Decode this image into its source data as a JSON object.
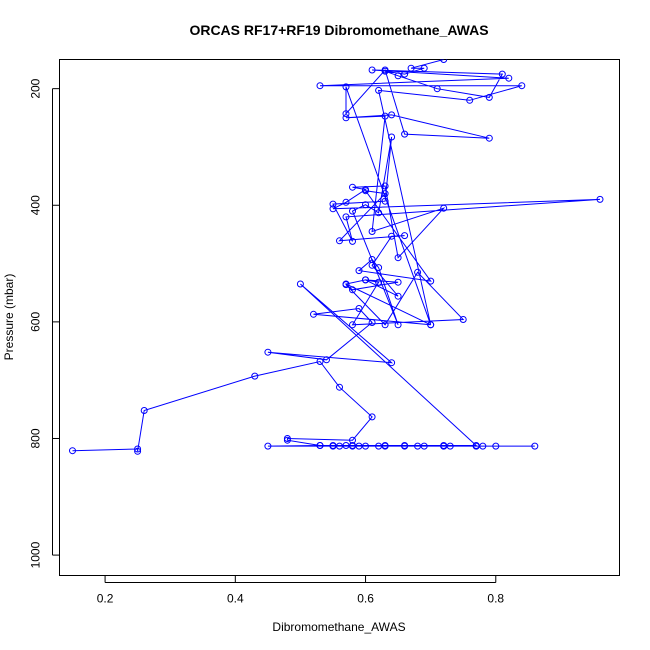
{
  "chart_data": {
    "type": "line",
    "title": "ORCAS RF17+RF19 Dibromomethane_AWAS",
    "xlabel": "Dibromomethane_AWAS",
    "ylabel": "Pressure (mbar)",
    "xlim": [
      0.13,
      0.99
    ],
    "ylim": [
      1035,
      150
    ],
    "y_inverted": true,
    "x_ticks": [
      0.2,
      0.4,
      0.6,
      0.8
    ],
    "x_tick_labels": [
      "0.2",
      "0.4",
      "0.6",
      "0.8"
    ],
    "y_ticks": [
      200,
      400,
      600,
      800,
      1000
    ],
    "y_tick_labels": [
      "200",
      "400",
      "600",
      "800",
      "1000"
    ],
    "grid": false,
    "legend": "none",
    "series": [
      {
        "color": "#0000ff",
        "x": [
          0.15,
          0.25,
          0.25,
          0.26,
          0.43,
          0.53,
          0.56,
          0.61,
          0.58,
          0.48,
          0.48,
          0.53,
          0.55,
          0.56,
          0.58,
          0.59,
          0.6,
          0.62,
          0.63,
          0.66,
          0.68,
          0.69,
          0.72,
          0.72,
          0.73,
          0.77,
          0.77,
          0.78,
          0.8,
          0.86,
          0.45,
          0.53,
          0.55,
          0.57,
          0.58,
          0.63,
          0.66,
          0.72,
          0.77,
          0.5,
          0.64,
          0.45,
          0.54,
          0.61,
          0.59,
          0.52,
          0.7,
          0.57,
          0.6,
          0.65,
          0.58,
          0.57,
          0.63,
          0.68,
          0.75,
          0.58,
          0.62,
          0.6,
          0.65,
          0.61,
          0.64,
          0.66,
          0.56,
          0.63,
          0.6,
          0.7,
          0.59,
          0.61,
          0.62,
          0.65,
          0.58,
          0.6,
          0.62,
          0.64,
          0.63,
          0.55,
          0.58,
          0.57,
          0.96,
          0.55,
          0.57,
          0.6,
          0.58,
          0.63,
          0.65,
          0.72,
          0.61,
          0.63,
          0.57,
          0.64,
          0.79,
          0.66,
          0.63,
          0.57,
          0.57,
          0.7,
          0.62,
          0.76,
          0.84,
          0.53,
          0.82,
          0.61,
          0.81,
          0.79,
          0.71,
          0.65,
          0.63,
          0.66,
          0.69,
          0.67,
          0.72
        ],
        "y": [
          821,
          818,
          822,
          752,
          693,
          668,
          712,
          763,
          803,
          800,
          803,
          812,
          813,
          813,
          813,
          813,
          813,
          813,
          813,
          813,
          813,
          813,
          813,
          813,
          813,
          813,
          813,
          813,
          813,
          813,
          813,
          812,
          812,
          812,
          812,
          812,
          812,
          812,
          812,
          535,
          670,
          652,
          665,
          601,
          577,
          587,
          605,
          535,
          528,
          532,
          545,
          536,
          605,
          515,
          596,
          605,
          532,
          528,
          556,
          503,
          453,
          452,
          461,
          380,
          375,
          530,
          512,
          493,
          507,
          605,
          410,
          399,
          413,
          283,
          393,
          398,
          462,
          420,
          390,
          406,
          395,
          373,
          369,
          367,
          490,
          405,
          445,
          247,
          250,
          245,
          285,
          278,
          168,
          243,
          197,
          605,
          203,
          220,
          195,
          195,
          182,
          168,
          175,
          215,
          200,
          178,
          170,
          175,
          165,
          165,
          150
        ]
      }
    ]
  }
}
